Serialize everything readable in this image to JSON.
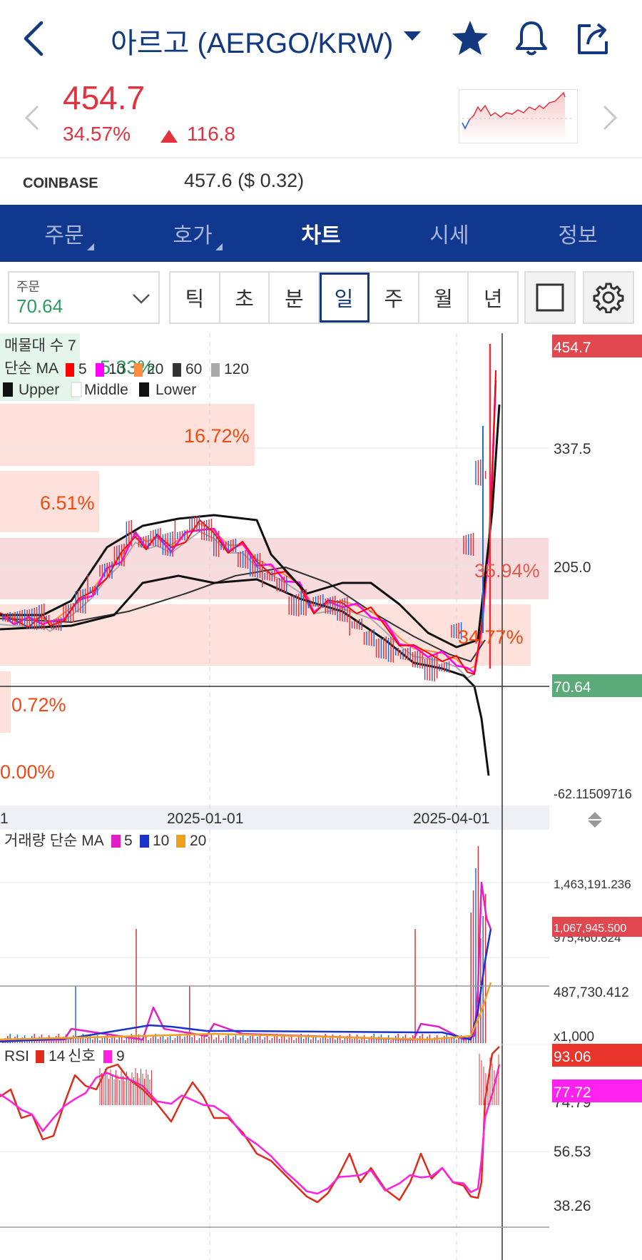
{
  "header": {
    "title": "아르고 (AERGO/KRW)",
    "icons": [
      "back-chevron-icon",
      "dropdown-caret-icon",
      "star-icon",
      "bell-icon",
      "share-icon"
    ]
  },
  "quote": {
    "price": "454.7",
    "change_pct": "34.57%",
    "change_value": "116.8",
    "color_up": "#e0333f"
  },
  "exchange": {
    "name": "COINBASE",
    "price": "457.6 ($ 0.32)"
  },
  "tabs": [
    {
      "label": "주문",
      "active": false,
      "has_corner": true
    },
    {
      "label": "호가",
      "active": false,
      "has_corner": true
    },
    {
      "label": "차트",
      "active": true,
      "has_corner": false
    },
    {
      "label": "시세",
      "active": false,
      "has_corner": false
    },
    {
      "label": "정보",
      "active": false,
      "has_corner": false
    }
  ],
  "toolbar": {
    "select_label": "주문",
    "select_value": "70.64",
    "periods": [
      "틱",
      "초",
      "분",
      "일",
      "주",
      "월",
      "년"
    ],
    "active_period": "일"
  },
  "main_chart": {
    "legend_volume_profile": "매물대 수 7",
    "legend_ma": "단순 MA",
    "ma_periods": [
      "5",
      "10",
      "20",
      "60",
      "120"
    ],
    "ma_colors": [
      "#ff0000",
      "#ff00ff",
      "#ff8c40",
      "#333333",
      "#aaaaaa"
    ],
    "legend_bb": [
      "Upper",
      "Middle",
      "Lower"
    ],
    "overlay_pct": "5.33%",
    "profile_pcts": [
      "16.72%",
      "6.51%",
      "35.94%",
      "34.77%",
      "0.72%",
      "0.00%"
    ],
    "price_axis": [
      "337.5",
      "205.0",
      "-62.11509716"
    ],
    "current_price_tag": "454.7",
    "crosshair_tag": "70.64",
    "date_labels": [
      "1",
      "2025-01-01",
      "2025-04-01"
    ]
  },
  "volume_chart": {
    "legend": "거래량 단순 MA",
    "ma_periods": [
      "5",
      "10",
      "20"
    ],
    "ma_colors": [
      "#e01fc4",
      "#1b33c9",
      "#f0a020"
    ],
    "axis": [
      "1,463,191.236",
      "975,460.824",
      "487,730.412"
    ],
    "current_tag": "1,067,945.500",
    "unit": "x1,000"
  },
  "rsi_chart": {
    "legend": "RSI",
    "period": "14",
    "signal_label": "신호",
    "signal_period": "9",
    "axis": [
      "74.79",
      "56.53",
      "38.26"
    ],
    "rsi_tag": "93.06",
    "signal_tag": "77.72"
  }
}
